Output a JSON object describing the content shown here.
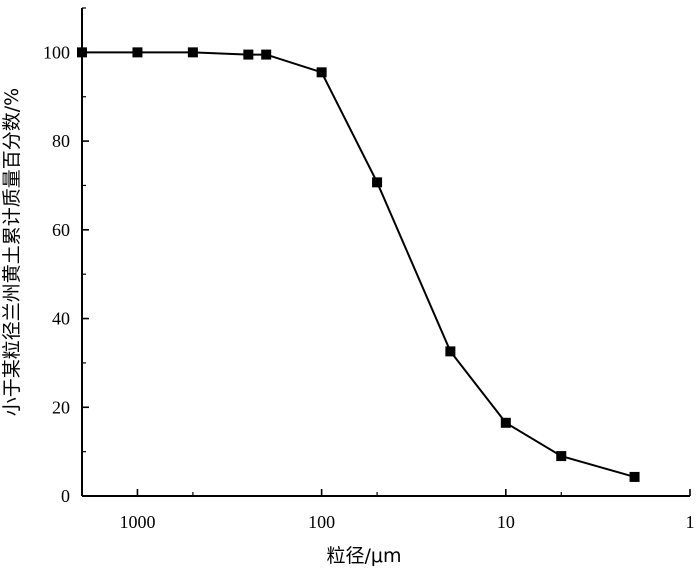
{
  "chart_data": {
    "type": "line",
    "xlabel": "粒径/μm",
    "ylabel": "小于某粒径兰州黄土累计质量百分数/%",
    "x_scale": "log",
    "x_reversed": true,
    "xlim": [
      2000,
      1
    ],
    "ylim": [
      0,
      110
    ],
    "x_ticks": [
      1000,
      100,
      10,
      1
    ],
    "x_tick_labels": [
      "1000",
      "100",
      "10",
      "1"
    ],
    "y_ticks": [
      0,
      20,
      40,
      60,
      80,
      100
    ],
    "y_tick_labels": [
      "0",
      "20",
      "40",
      "60",
      "80",
      "100"
    ],
    "grid": false,
    "marker": "square",
    "line_color": "#000000",
    "series": [
      {
        "x": [
          2000,
          1000,
          500,
          250,
          200,
          100,
          50,
          20,
          10,
          5,
          2
        ],
        "y": [
          100,
          100,
          100,
          99.5,
          99.5,
          95.5,
          70.7,
          32.6,
          16.5,
          9.0,
          4.3
        ]
      }
    ]
  }
}
